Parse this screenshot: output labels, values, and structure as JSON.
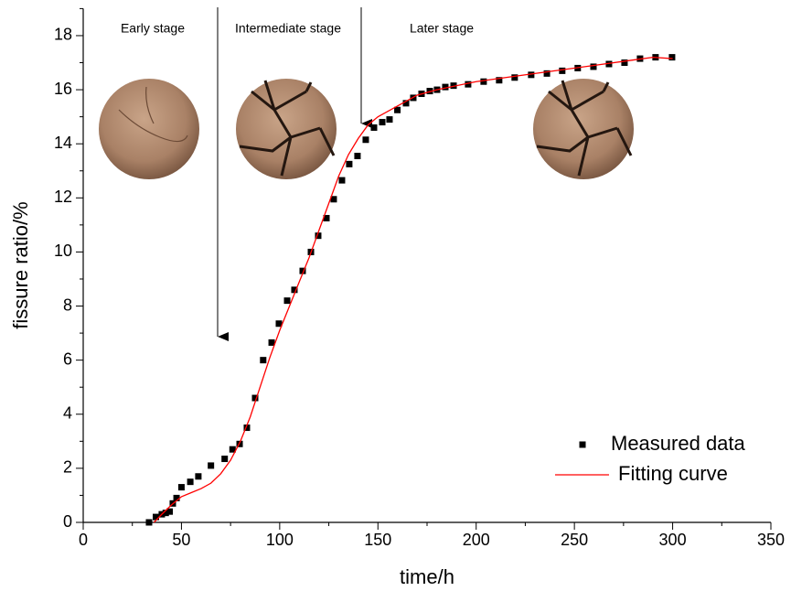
{
  "chart_data": {
    "type": "scatter",
    "x_label": "time/h",
    "y_label": "fissure ratio/%",
    "annotations": [
      "Early stage",
      "Intermediate stage",
      "Later stage"
    ],
    "xlim": [
      0,
      350
    ],
    "xticks": [
      0,
      50,
      100,
      150,
      200,
      250,
      300,
      350
    ],
    "ylim": [
      0,
      19
    ],
    "yticks": [
      0,
      2,
      4,
      6,
      8,
      10,
      12,
      14,
      16,
      18
    ],
    "legend_position": "lower right",
    "series": [
      {
        "name": "Measured data",
        "type": "scatter",
        "color": "#000000",
        "x": [
          33.5,
          37,
          40,
          42,
          44,
          45.6,
          47.5,
          50,
          54.5,
          58.6,
          65,
          72,
          76,
          79.6,
          83.3,
          87.5,
          91.6,
          95.9,
          99.6,
          103.8,
          107.5,
          111.7,
          115.9,
          119.6,
          123.8,
          127.5,
          131.7,
          135.4,
          139.6,
          143.8,
          148,
          152.2,
          155.9,
          159.9,
          164.3,
          168,
          172.2,
          176.4,
          180.1,
          184.3,
          188.5,
          195.9,
          203.8,
          211.7,
          219.6,
          228,
          236,
          243.8,
          251.7,
          259.7,
          267.6,
          275.5,
          283.4,
          291.3,
          299.7
        ],
        "values": [
          0,
          0.2,
          0.3,
          0.35,
          0.4,
          0.7,
          0.9,
          1.3,
          1.5,
          1.7,
          2.1,
          2.35,
          2.7,
          2.9,
          3.5,
          4.6,
          6.0,
          6.65,
          7.35,
          8.2,
          8.6,
          9.3,
          10.0,
          10.6,
          11.25,
          11.95,
          12.65,
          13.25,
          13.55,
          14.15,
          14.6,
          14.8,
          14.9,
          15.25,
          15.5,
          15.7,
          15.85,
          15.95,
          16.0,
          16.1,
          16.15,
          16.2,
          16.3,
          16.35,
          16.45,
          16.55,
          16.6,
          16.7,
          16.8,
          16.85,
          16.95,
          17.0,
          17.15,
          17.2,
          17.2
        ]
      },
      {
        "name": "Fitting curve",
        "type": "line",
        "color": "#ff0000",
        "x": [
          36,
          40,
          45,
          50,
          55,
          60,
          65,
          70,
          75,
          80,
          85,
          90,
          95,
          100,
          105,
          110,
          115,
          120,
          125,
          130,
          135,
          140,
          145,
          150,
          160,
          170,
          180,
          200,
          220,
          240,
          260,
          280,
          290,
          300
        ],
        "values": [
          0,
          0.3,
          0.65,
          0.95,
          1.1,
          1.25,
          1.45,
          1.8,
          2.3,
          3.0,
          3.9,
          5.0,
          6.1,
          7.1,
          8.0,
          8.9,
          9.8,
          10.8,
          11.8,
          12.8,
          13.6,
          14.2,
          14.7,
          15.0,
          15.4,
          15.8,
          16.0,
          16.3,
          16.5,
          16.7,
          16.9,
          17.1,
          17.2,
          17.15
        ]
      }
    ]
  }
}
